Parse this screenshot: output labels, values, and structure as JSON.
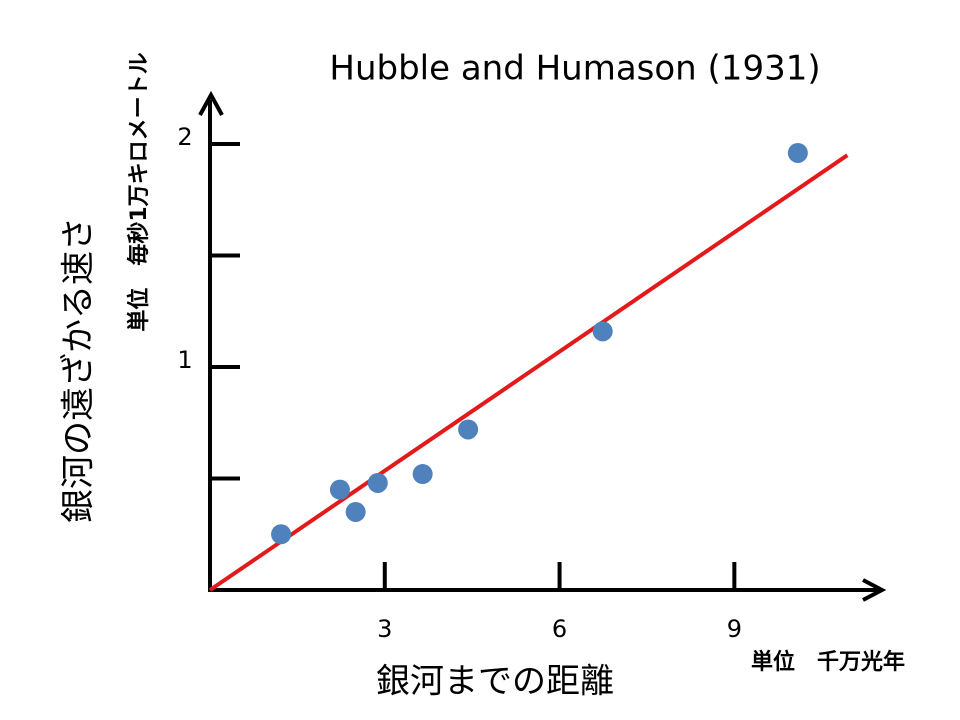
{
  "chart_data": {
    "type": "scatter",
    "title": "Hubble and Humason (1931)",
    "x_label": "銀河までの距離",
    "x_unit": "単位　千万光年",
    "y_label": "銀河の遠ざかる速さ",
    "y_unit": "単位　毎秒1万キロメートル",
    "x": [
      1.22,
      2.23,
      2.5,
      2.88,
      3.65,
      4.43,
      6.74,
      10.09
    ],
    "values": [
      0.25,
      0.45,
      0.35,
      0.48,
      0.52,
      0.72,
      1.16,
      1.96
    ],
    "color": "#4f81bd",
    "fit_line": {
      "color": "#e31a1a",
      "x": [
        0,
        10.94
      ],
      "values": [
        0,
        1.95
      ]
    },
    "xlim": [
      0,
      11.5
    ],
    "ylim": [
      0,
      2.22
    ],
    "xticks": [
      3,
      6,
      9
    ],
    "yticks": [
      1,
      2
    ],
    "yminorticks": [
      0.5,
      1.5
    ]
  }
}
